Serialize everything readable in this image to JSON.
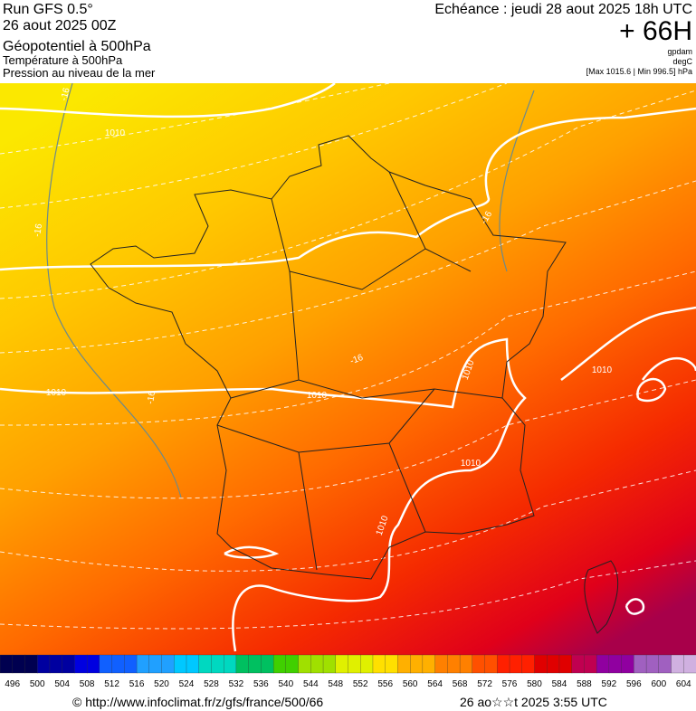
{
  "header": {
    "run": "Run GFS 0.5°",
    "date": "26 aout 2025 00Z",
    "field1": "Géopotentiel à 500hPa",
    "field2": "Température à 500hPa",
    "field3": "Pression au niveau de la mer",
    "forecast": "Echéance : jeudi 28 aout 2025 18h UTC",
    "lead": "+ 66H",
    "unit1": "gpdam",
    "unit2": "degC",
    "range": "[Max 1015.6 | Min 996.5] hPa"
  },
  "map": {
    "contour_labels": [
      "1010",
      "-16",
      "-16",
      "1010",
      "-16",
      "1010",
      "-16",
      "1010",
      "1010",
      "1010",
      "1010",
      "-16"
    ]
  },
  "scale": {
    "labels": [
      496,
      500,
      504,
      508,
      512,
      516,
      520,
      524,
      528,
      532,
      536,
      540,
      544,
      548,
      552,
      556,
      560,
      564,
      568,
      572,
      576,
      580,
      584,
      588,
      592,
      596,
      600,
      604
    ]
  },
  "footer": {
    "source": "© http://www.infoclimat.fr/z/gfs/france/500/66",
    "timestamp": "26 ao☆☆t 2025  3:55 UTC"
  }
}
